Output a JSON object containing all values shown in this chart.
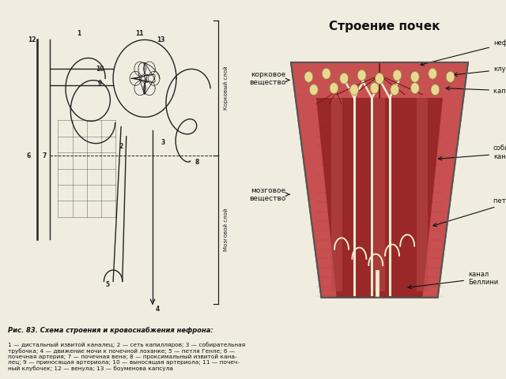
{
  "bg_color": "#f0ede0",
  "title_right": "Строение почек",
  "caption_title": "Рис. 83. Схема строения и кровоснабжения нефрона:",
  "caption_body": "1 — дистальный извитой каналец; 2 — сеть капилляров; 3 — собирательная\nтрубочка; 4 — движение мочи к почечной лоханке; 5 — петля Генле; 6 —\nпочечная артерия; 7 — почечная вена; 8 — проксимальный извитой кана-\nлец; 9 — приносящая артериола; 10 — выносящая артериола; 11 — почеч-\nный клубочек; 12 — венула; 13 — боуменова капсула",
  "color_dark": "#222222",
  "color_cortex": "#c85050",
  "color_medulla": "#9a2828",
  "color_collecting": "#f0ead0",
  "color_border": "#555555",
  "color_glom": "#e8d890",
  "color_glom_edge": "#888840"
}
